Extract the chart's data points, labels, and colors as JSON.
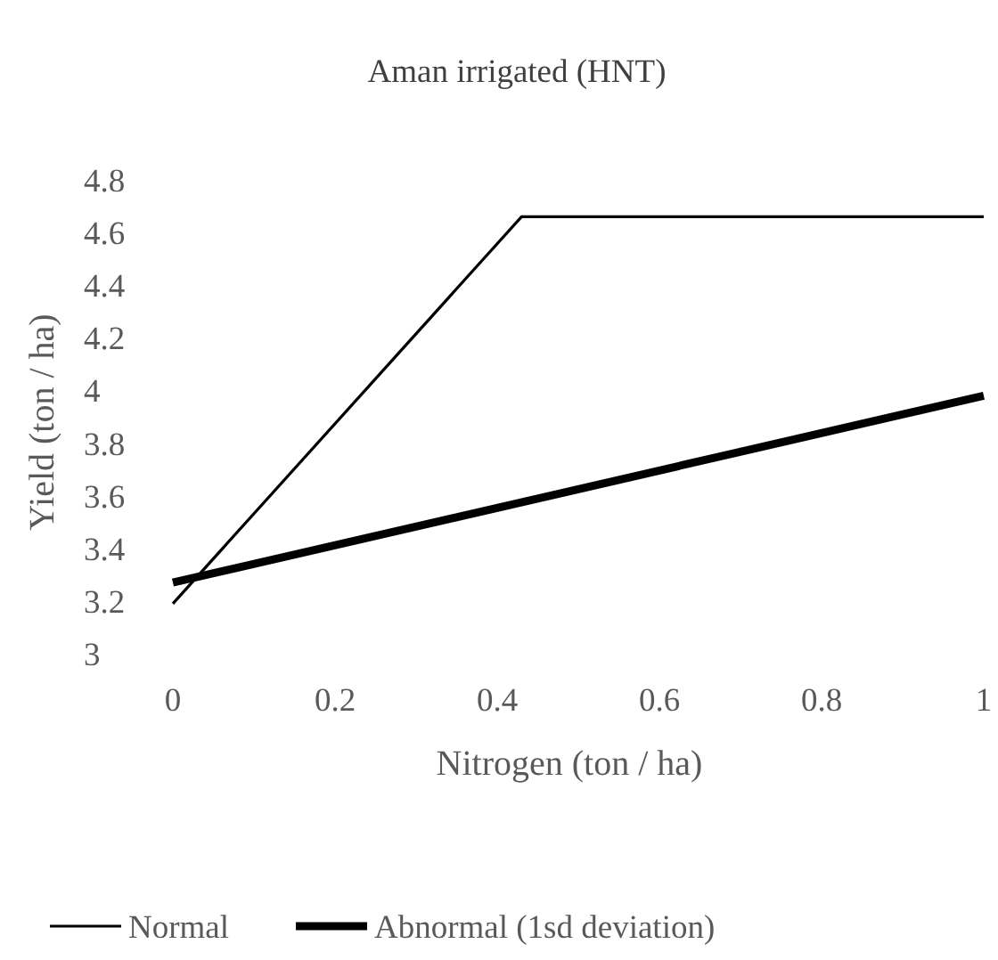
{
  "chart_data": {
    "type": "line",
    "title": "Aman irrigated (HNT)",
    "xlabel": "Nitrogen (ton / ha)",
    "ylabel": "Yield (ton / ha)",
    "xlim": [
      0,
      1
    ],
    "xticks": [
      0,
      0.2,
      0.4,
      0.6,
      0.8,
      1
    ],
    "ylim": [
      3,
      4.8
    ],
    "yticks": [
      3,
      3.2,
      3.4,
      3.6,
      3.8,
      4,
      4.2,
      4.4,
      4.6,
      4.8
    ],
    "grid": false,
    "legend": "bottom",
    "line_style": "solid",
    "series": [
      {
        "name": "Normal",
        "color": "#000000",
        "x": [
          0,
          0.43,
          1
        ],
        "values": [
          3.19,
          4.66,
          4.66
        ]
      },
      {
        "name": "Abnormal (1sd deviation)",
        "color": "#000000",
        "x": [
          0,
          1
        ],
        "values": [
          3.27,
          3.98
        ]
      }
    ]
  }
}
